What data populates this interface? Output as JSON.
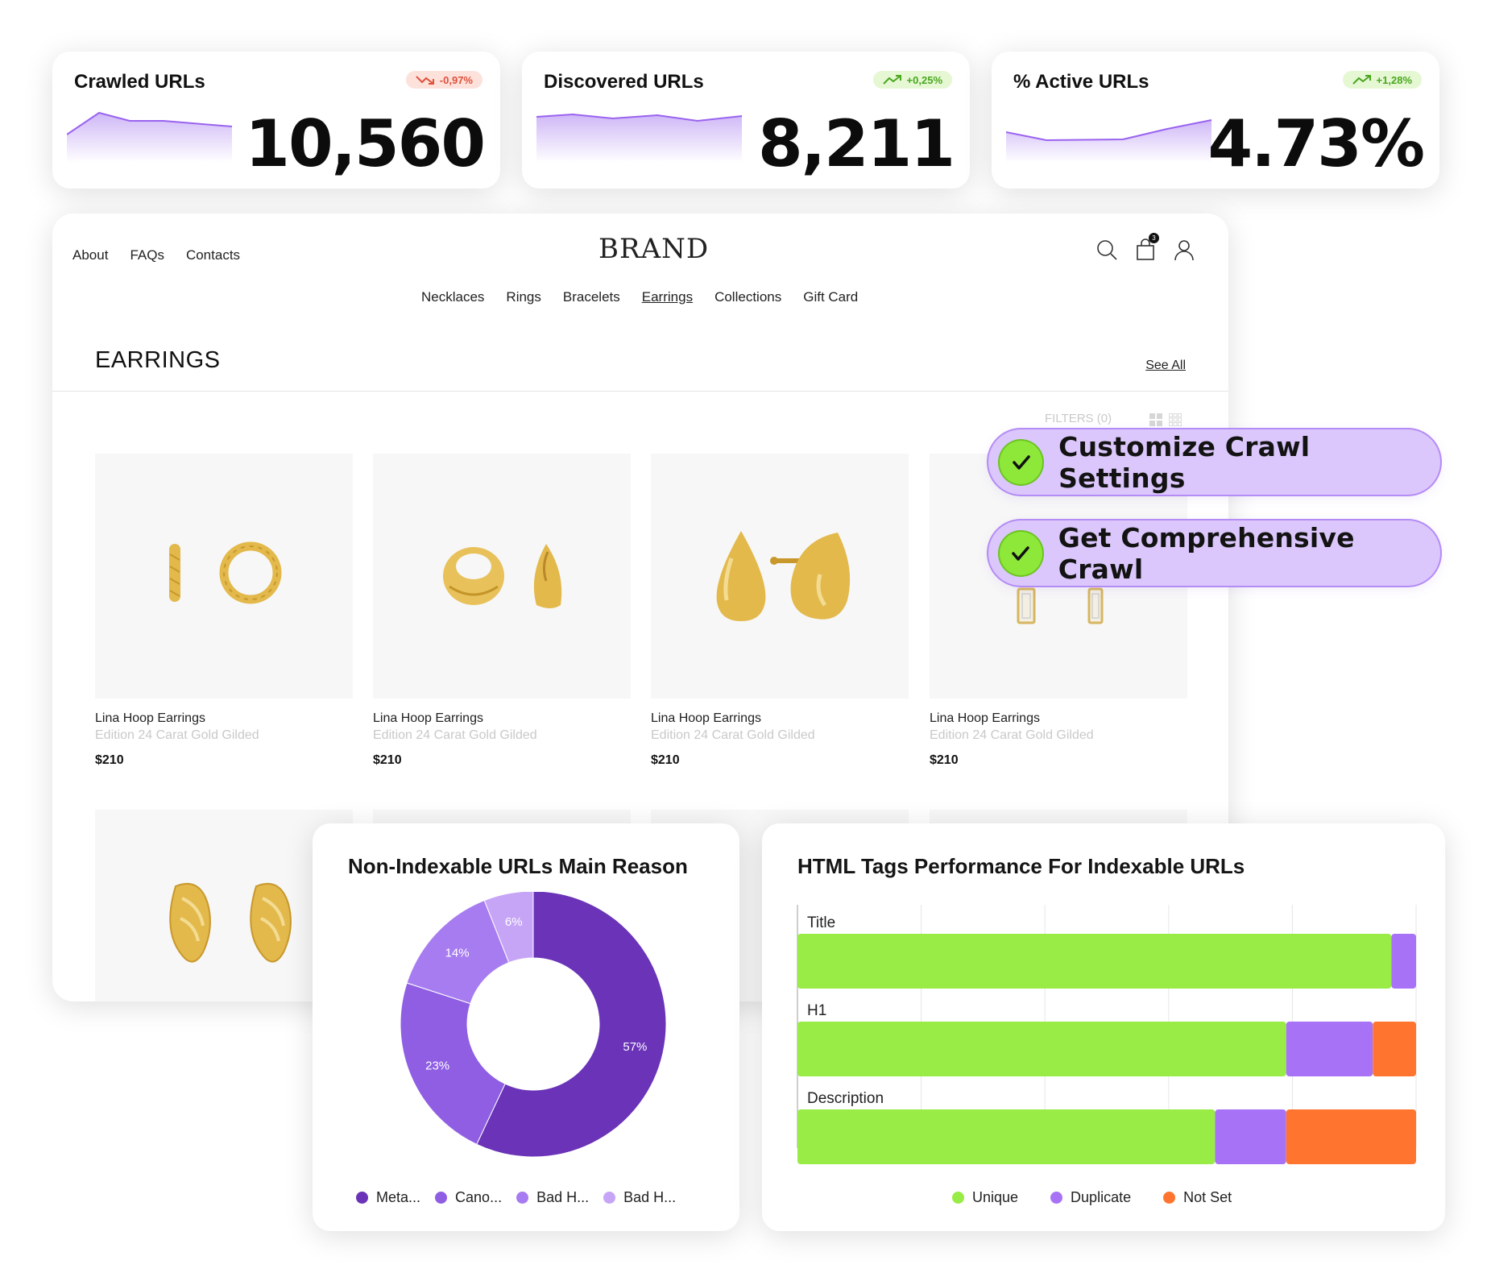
{
  "kpis": [
    {
      "title": "Crawled URLs",
      "badge": "-0,97%",
      "trend": "down",
      "value": "10,560"
    },
    {
      "title": "Discovered URLs",
      "badge": "+0,25%",
      "trend": "up",
      "value": "8,211"
    },
    {
      "title": "% Active URLs",
      "badge": "+1,28%",
      "trend": "up",
      "value": "4.73%"
    }
  ],
  "store": {
    "top_links": [
      "About",
      "FAQs",
      "Contacts"
    ],
    "brand": "BRAND",
    "cart_count": "3",
    "nav": [
      "Necklaces",
      "Rings",
      "Bracelets",
      "Earrings",
      "Collections",
      "Gift Card"
    ],
    "active_nav": "Earrings",
    "section_title": "EARRINGS",
    "see_all": "See All",
    "filters": "FILTERS (0)",
    "products": [
      {
        "name": "Lina Hoop Earrings",
        "sub": "Edition 24 Carat Gold Gilded",
        "price": "$210"
      },
      {
        "name": "Lina Hoop Earrings",
        "sub": "Edition 24 Carat Gold Gilded",
        "price": "$210"
      },
      {
        "name": "Lina Hoop Earrings",
        "sub": "Edition 24 Carat Gold Gilded",
        "price": "$210"
      },
      {
        "name": "Lina Hoop Earrings",
        "sub": "Edition 24 Carat Gold Gilded",
        "price": "$210"
      }
    ]
  },
  "pills": [
    "Customize Crawl Settings",
    "Get Comprehensive Crawl"
  ],
  "colors": {
    "purple_dark": "#6a33b8",
    "purple_mid": "#8f5ee3",
    "purple_light": "#a77cf0",
    "purple_pale": "#c6a5f7",
    "green": "#98ec45",
    "violet": "#a872f7",
    "orange": "#ff7530",
    "gold": "#e8c15a"
  },
  "chart_data": [
    {
      "type": "pie",
      "title": "Non-Indexable URLs Main Reason",
      "categories": [
        "Meta...",
        "Cano...",
        "Bad H...",
        "Bad H..."
      ],
      "values": [
        57,
        23,
        14,
        6
      ],
      "labels": [
        "57%",
        "23%",
        "14%",
        "6%"
      ],
      "legend": "bottom"
    },
    {
      "type": "bar",
      "orientation": "horizontal-stacked",
      "title": "HTML Tags Performance For Indexable URLs",
      "categories": [
        "Title",
        "H1",
        "Description"
      ],
      "series": [
        {
          "name": "Unique",
          "values": [
            96,
            79,
            67.5
          ]
        },
        {
          "name": "Duplicate",
          "values": [
            4,
            14,
            11.5
          ]
        },
        {
          "name": "Not Set",
          "values": [
            0,
            7,
            21
          ]
        }
      ],
      "xlim": [
        0,
        100
      ],
      "grid": true,
      "legend": "bottom"
    }
  ]
}
